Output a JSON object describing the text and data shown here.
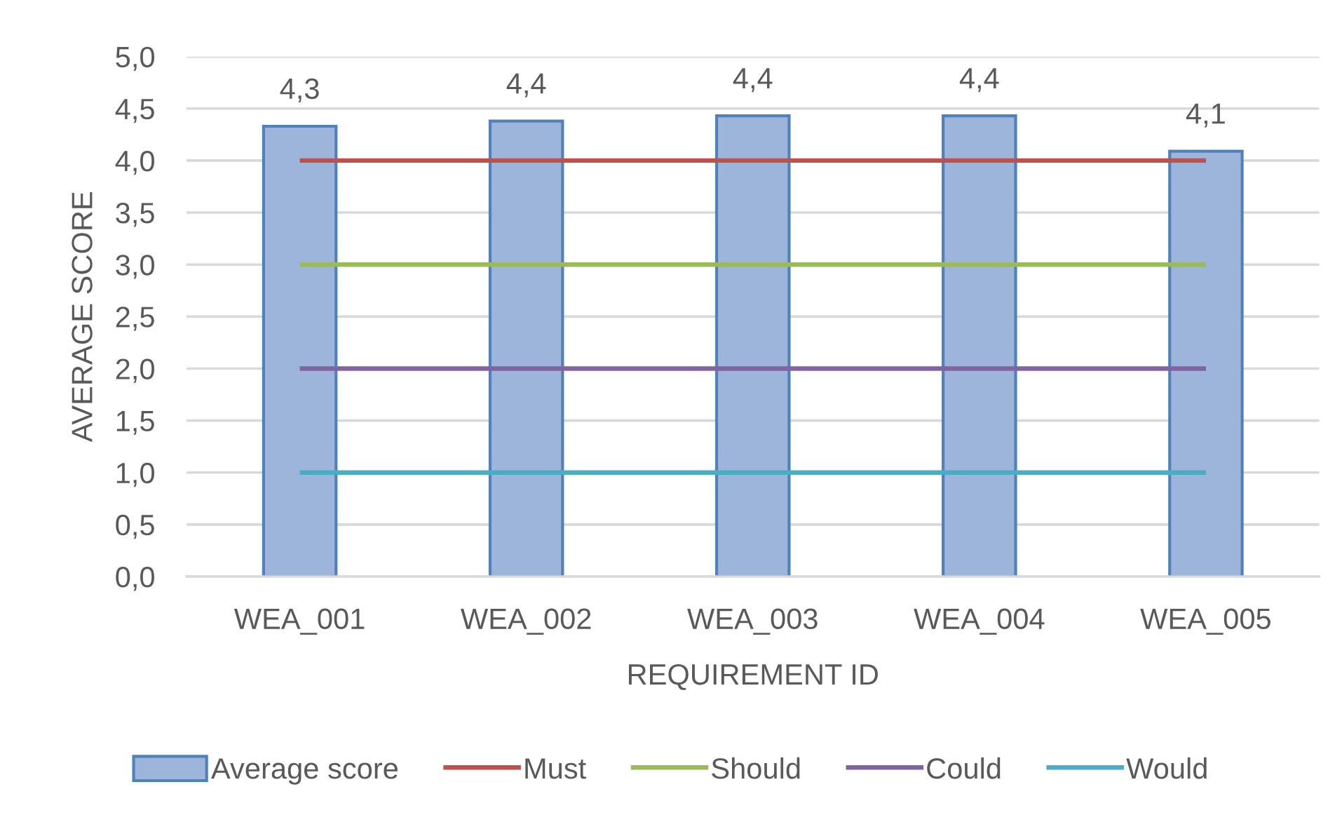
{
  "chart_data": {
    "type": "bar",
    "xlabel": "REQUIREMENT ID",
    "ylabel": "AVERAGE SCORE",
    "categories": [
      "WEA_001",
      "WEA_002",
      "WEA_003",
      "WEA_004",
      "WEA_005"
    ],
    "series": [
      {
        "name": "Average score",
        "color": "#9db4db",
        "values": [
          4.33,
          4.38,
          4.43,
          4.43,
          4.09
        ],
        "value_labels": [
          "4,3",
          "4,4",
          "4,4",
          "4,4",
          "4,1"
        ]
      },
      {
        "name": "Must",
        "type": "line",
        "color": "#c0504d",
        "values": [
          4,
          4,
          4,
          4,
          4
        ]
      },
      {
        "name": "Should",
        "type": "line",
        "color": "#9bbb59",
        "values": [
          3,
          3,
          3,
          3,
          3
        ]
      },
      {
        "name": "Could",
        "type": "line",
        "color": "#8064a2",
        "values": [
          2,
          2,
          2,
          2,
          2
        ]
      },
      {
        "name": "Would",
        "type": "line",
        "color": "#4bacc6",
        "values": [
          1,
          1,
          1,
          1,
          1
        ]
      }
    ],
    "ylim": [
      0,
      5
    ],
    "yticks": [
      {
        "value": 0,
        "label": "0,0"
      },
      {
        "value": 0.5,
        "label": "0,5"
      },
      {
        "value": 1,
        "label": "1,0"
      },
      {
        "value": 1.5,
        "label": "1,5"
      },
      {
        "value": 2,
        "label": "2,0"
      },
      {
        "value": 2.5,
        "label": "2,5"
      },
      {
        "value": 3,
        "label": "3,0"
      },
      {
        "value": 3.5,
        "label": "3,5"
      },
      {
        "value": 4,
        "label": "4,0"
      },
      {
        "value": 4.5,
        "label": "4,5"
      },
      {
        "value": 5,
        "label": "5,0"
      }
    ],
    "grid": "y",
    "legend": "bottom"
  }
}
